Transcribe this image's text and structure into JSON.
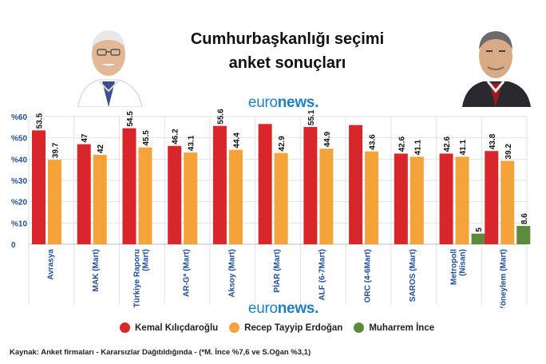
{
  "title_line1": "Cumhurbaşkanlığı seçimi",
  "title_line2": "anket sonuçları",
  "logo": {
    "prefix": "euro",
    "suffix": "news",
    "dot": "."
  },
  "legend": [
    {
      "name": "Kemal Kılıçdaroğlu",
      "color": "#d9262b"
    },
    {
      "name": "Recep Tayyip Erdoğan",
      "color": "#f4a23a"
    },
    {
      "name": "Muharrem İnce",
      "color": "#5c8a3a"
    }
  ],
  "source": "Kaynak: Anket firmaları - Kararsızlar Dağıtıldığında - (*M. İnce %7,6 ve S.Oğan %3,1)",
  "chart_data": {
    "type": "bar",
    "categories": [
      "Avrasya",
      "MAK (Mart)",
      "Türkiye Raporu\n(Mart)",
      "AR-G* (Mart)",
      "Aksoy (Mart)",
      "PİAR (Mart)",
      "ALF (6-7Mart)",
      "ORC (4-6Mart)",
      "SAROS (Mart)",
      "Metropoll\n(Nisan)",
      "Yöneylem (Mart)"
    ],
    "series": [
      {
        "name": "Kemal Kılıçdaroğlu",
        "color": "#d9262b",
        "values": [
          53.5,
          47,
          54.5,
          46.2,
          55.6,
          56.5,
          55.1,
          56,
          42.6,
          42.6,
          43.8
        ],
        "labels": [
          "53.5",
          "47",
          "54.5",
          "46.2",
          "55.6",
          "",
          "55.1",
          "",
          "42.6",
          "42.6",
          "43.8"
        ]
      },
      {
        "name": "Recep Tayyip Erdoğan",
        "color": "#f4a23a",
        "values": [
          39.7,
          42,
          45.5,
          43.1,
          44.4,
          42.9,
          44.9,
          43.6,
          41.1,
          41.1,
          39.2
        ],
        "labels": [
          "39.7",
          "42",
          "45.5",
          "43.1",
          "44.4",
          "42.9",
          "44.9",
          "43.6",
          "41.1",
          "41.1",
          "39.2"
        ]
      },
      {
        "name": "Muharrem İnce",
        "color": "#5c8a3a",
        "values": [
          null,
          null,
          null,
          null,
          null,
          null,
          null,
          null,
          null,
          5,
          8.6
        ],
        "labels": [
          "",
          "",
          "",
          "",
          "",
          "",
          "",
          "",
          "",
          "5",
          "8.6"
        ]
      }
    ],
    "yticks": [
      "%60",
      "%50",
      "%40",
      "%30",
      "%20",
      "%10",
      "0"
    ],
    "ylim": [
      0,
      60
    ],
    "grid": true
  }
}
